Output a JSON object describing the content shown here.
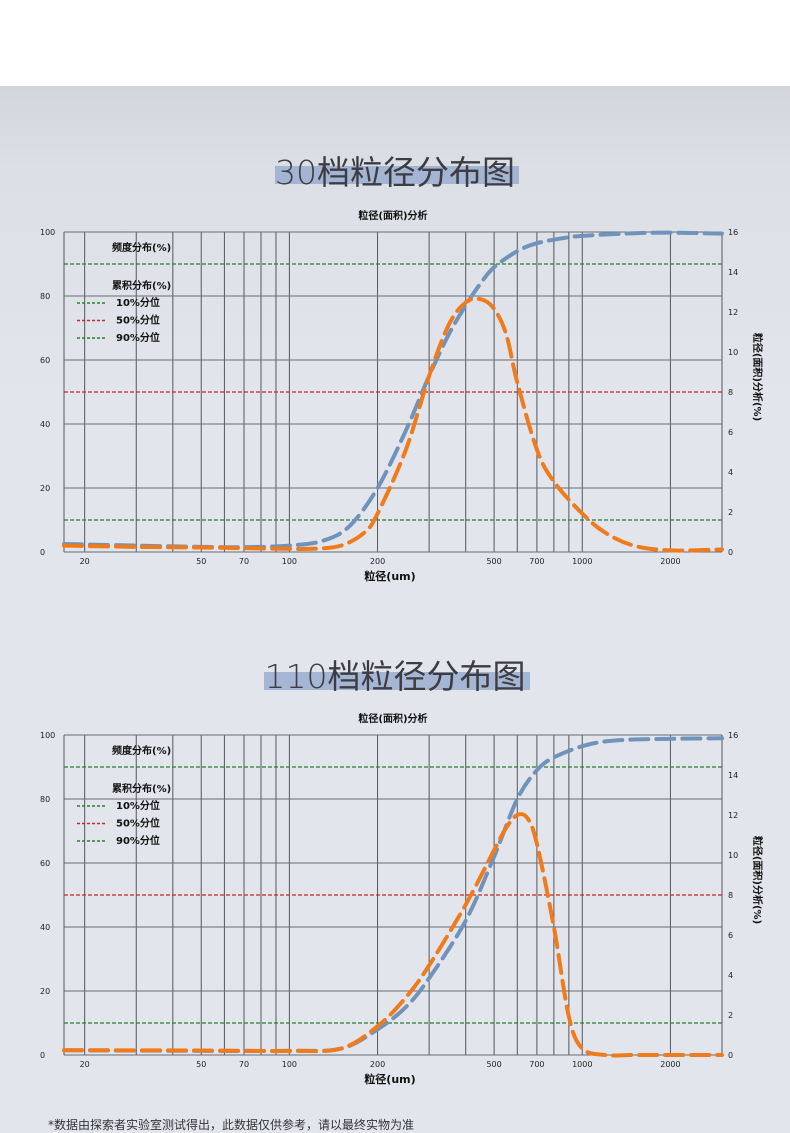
{
  "sections": [
    {
      "title": "30档粒径分布图"
    },
    {
      "title": "110档粒径分布图"
    }
  ],
  "footnote": "*数据由探索者实验室测试得出，此数据仅供参考，请以最终实物为准",
  "chart_data": [
    {
      "type": "line",
      "title": "粒径(面积)分析",
      "xlabel": "粒径(um)",
      "ylabel": "",
      "y2label": "粒径(面积)分析(%)",
      "xscale": "log",
      "xlim": [
        17,
        3000
      ],
      "ylim": [
        0,
        100
      ],
      "y2lim": [
        0,
        16
      ],
      "x_ticks": [
        "20",
        "50",
        "70",
        "100",
        "200",
        "500",
        "700",
        "1000",
        "2000"
      ],
      "y_ticks": [
        "0",
        "20",
        "40",
        "60",
        "80",
        "100"
      ],
      "y2_ticks": [
        "0",
        "2",
        "4",
        "6",
        "8",
        "10",
        "12",
        "14",
        "16"
      ],
      "legend": {
        "heading1": "频度分布(%)",
        "heading2": "累积分布(%)",
        "items": [
          {
            "label": "10%分位",
            "color": "#2e7d32"
          },
          {
            "label": "50%分位",
            "color": "#c62828"
          },
          {
            "label": "90%分位",
            "color": "#2e7d32"
          }
        ]
      },
      "reference_lines": [
        {
          "y": 10,
          "color": "#2e7d32"
        },
        {
          "y": 50,
          "color": "#c62828"
        },
        {
          "y": 90,
          "color": "#2e7d32"
        }
      ],
      "series": [
        {
          "color": "#6f93ba",
          "x": [
            17,
            30,
            50,
            70,
            100,
            130,
            160,
            200,
            250,
            300,
            350,
            400,
            450,
            500,
            600,
            700,
            850,
            1000,
            1500,
            2000,
            3000
          ],
          "y": [
            2.5,
            2,
            1.6,
            1.5,
            2,
            3.5,
            8,
            20,
            38,
            55,
            68,
            77,
            84,
            89,
            94,
            96.5,
            98,
            98.8,
            99.6,
            99.8,
            99.5
          ]
        },
        {
          "color": "#f07b1c",
          "x": [
            17,
            30,
            50,
            70,
            100,
            120,
            150,
            180,
            200,
            250,
            300,
            350,
            400,
            450,
            500,
            550,
            600,
            700,
            800,
            1000,
            1200,
            1500,
            2000,
            3000
          ],
          "y": [
            2,
            1.6,
            1.4,
            1.2,
            1,
            1,
            2,
            6,
            12,
            32,
            55,
            71,
            78,
            79,
            76,
            68,
            53,
            32,
            22,
            12,
            6,
            2,
            0.5,
            0.8
          ]
        }
      ]
    },
    {
      "type": "line",
      "title": "粒径(面积)分析",
      "xlabel": "粒径(um)",
      "ylabel": "",
      "y2label": "粒径(面积)分析(%)",
      "xscale": "log",
      "xlim": [
        17,
        3000
      ],
      "ylim": [
        0,
        100
      ],
      "y2lim": [
        0,
        16
      ],
      "x_ticks": [
        "20",
        "50",
        "70",
        "100",
        "200",
        "500",
        "700",
        "1000",
        "2000"
      ],
      "y_ticks": [
        "0",
        "20",
        "40",
        "60",
        "80",
        "100"
      ],
      "y2_ticks": [
        "0",
        "2",
        "4",
        "6",
        "8",
        "10",
        "12",
        "14",
        "16"
      ],
      "legend": {
        "heading1": "频度分布(%)",
        "heading2": "累积分布(%)",
        "items": [
          {
            "label": "10%分位",
            "color": "#2e7d32"
          },
          {
            "label": "50%分位",
            "color": "#c62828"
          },
          {
            "label": "90%分位",
            "color": "#2e7d32"
          }
        ]
      },
      "reference_lines": [
        {
          "y": 10,
          "color": "#2e7d32"
        },
        {
          "y": 50,
          "color": "#c62828"
        },
        {
          "y": 90,
          "color": "#2e7d32"
        }
      ],
      "series": [
        {
          "color": "#6f93ba",
          "x": [
            17,
            50,
            100,
            150,
            200,
            250,
            300,
            400,
            500,
            600,
            700,
            800,
            1000,
            1200,
            1500,
            2000,
            3000
          ],
          "y": [
            1.5,
            1.3,
            1.3,
            2,
            8,
            15,
            24,
            42,
            62,
            80,
            89,
            93,
            96.5,
            98,
            98.6,
            98.8,
            99
          ]
        },
        {
          "color": "#f07b1c",
          "x": [
            17,
            50,
            100,
            150,
            200,
            250,
            300,
            400,
            500,
            550,
            600,
            650,
            700,
            800,
            900,
            1000,
            1200,
            1500,
            2000,
            3000
          ],
          "y": [
            1.5,
            1.4,
            1.3,
            2,
            9,
            18,
            28,
            47,
            64,
            71,
            75,
            74,
            66,
            40,
            12,
            2,
            0,
            0,
            0,
            0
          ]
        }
      ]
    }
  ]
}
